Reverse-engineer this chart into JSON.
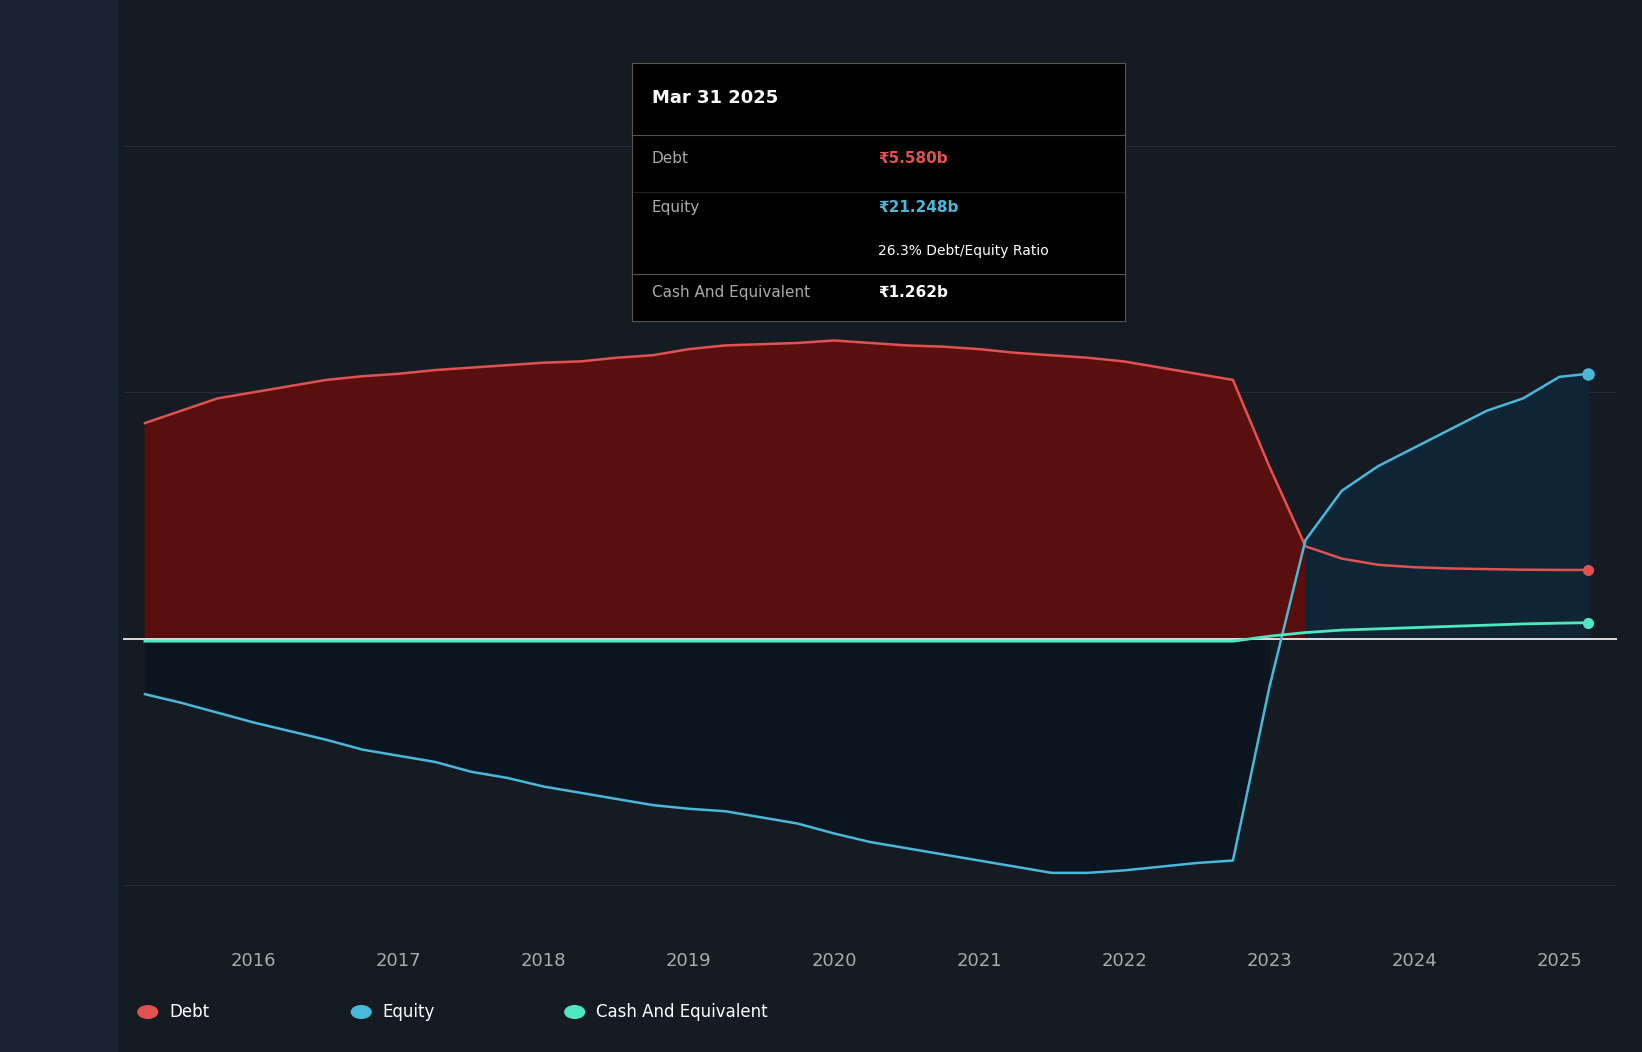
{
  "background_color": "#141b22",
  "plot_bg_color": "#141b22",
  "debt_color": "#e05252",
  "equity_color": "#4ab8d8",
  "cash_color": "#4de8c2",
  "debt_fill_color": "#5a0f0f",
  "equity_neg_fill_color": "#0a1520",
  "equity_pos_fill_color": "#0f2535",
  "grid_color": "#2a2a3a",
  "years": [
    2015.25,
    2015.5,
    2015.75,
    2016.0,
    2016.25,
    2016.5,
    2016.75,
    2017.0,
    2017.25,
    2017.5,
    2017.75,
    2018.0,
    2018.25,
    2018.5,
    2018.75,
    2019.0,
    2019.25,
    2019.5,
    2019.75,
    2020.0,
    2020.25,
    2020.5,
    2020.75,
    2021.0,
    2021.25,
    2021.5,
    2021.75,
    2022.0,
    2022.25,
    2022.5,
    2022.75,
    2023.0,
    2023.25,
    2023.5,
    2023.75,
    2024.0,
    2024.25,
    2024.5,
    2024.75,
    2025.0,
    2025.2
  ],
  "debt": [
    17.5,
    18.5,
    19.5,
    20.0,
    20.5,
    21.0,
    21.3,
    21.5,
    21.8,
    22.0,
    22.2,
    22.4,
    22.5,
    22.8,
    23.0,
    23.5,
    23.8,
    23.9,
    24.0,
    24.2,
    24.0,
    23.8,
    23.7,
    23.5,
    23.2,
    23.0,
    22.8,
    22.5,
    22.0,
    21.5,
    21.0,
    14.0,
    7.5,
    6.5,
    6.0,
    5.8,
    5.7,
    5.65,
    5.6,
    5.58,
    5.58
  ],
  "equity": [
    -4.5,
    -5.2,
    -6.0,
    -6.8,
    -7.5,
    -8.2,
    -9.0,
    -9.5,
    -10.0,
    -10.8,
    -11.3,
    -12.0,
    -12.5,
    -13.0,
    -13.5,
    -13.8,
    -14.0,
    -14.5,
    -15.0,
    -15.8,
    -16.5,
    -17.0,
    -17.5,
    -18.0,
    -18.5,
    -19.0,
    -19.0,
    -18.8,
    -18.5,
    -18.2,
    -18.0,
    -4.0,
    8.0,
    12.0,
    14.0,
    15.5,
    17.0,
    18.5,
    19.5,
    21.248,
    21.5
  ],
  "cash": [
    -0.2,
    -0.2,
    -0.2,
    -0.2,
    -0.2,
    -0.2,
    -0.2,
    -0.2,
    -0.2,
    -0.2,
    -0.2,
    -0.2,
    -0.2,
    -0.2,
    -0.2,
    -0.2,
    -0.2,
    -0.2,
    -0.2,
    -0.2,
    -0.2,
    -0.2,
    -0.2,
    -0.2,
    -0.2,
    -0.2,
    -0.2,
    -0.2,
    -0.2,
    -0.2,
    -0.2,
    0.2,
    0.5,
    0.7,
    0.8,
    0.9,
    1.0,
    1.1,
    1.2,
    1.262,
    1.3
  ],
  "tooltip": {
    "date": "Mar 31 2025",
    "debt_label": "Debt",
    "debt_value": "₹5.580b",
    "equity_label": "Equity",
    "equity_value": "₹21.248b",
    "ratio_text": "26.3% Debt/Equity Ratio",
    "cash_label": "Cash And Equivalent",
    "cash_value": "₹1.262b"
  },
  "legend": [
    {
      "label": "Debt",
      "color": "#e05252"
    },
    {
      "label": "Equity",
      "color": "#4ab8d8"
    },
    {
      "label": "Cash And Equivalent",
      "color": "#4de8c2"
    }
  ],
  "xlim": [
    2015.1,
    2025.4
  ],
  "ylim": [
    -25,
    45
  ],
  "xticks": [
    2016,
    2017,
    2018,
    2019,
    2020,
    2021,
    2022,
    2023,
    2024,
    2025
  ],
  "zero_line_color": "#ffffff",
  "sidebar_color": "#1a2332"
}
